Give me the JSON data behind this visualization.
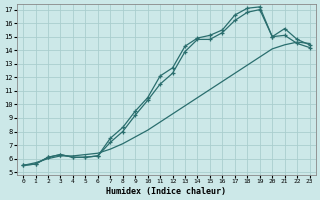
{
  "xlabel": "Humidex (Indice chaleur)",
  "ylabel": "",
  "bg_color": "#cce8e8",
  "grid_color": "#aacece",
  "line_color": "#2a6e6e",
  "x_min": 0,
  "x_max": 23,
  "y_min": 5,
  "y_max": 17,
  "x_ticks": [
    0,
    1,
    2,
    3,
    4,
    5,
    6,
    7,
    8,
    9,
    10,
    11,
    12,
    13,
    14,
    15,
    16,
    17,
    18,
    19,
    20,
    21,
    22,
    23
  ],
  "y_ticks": [
    5,
    6,
    7,
    8,
    9,
    10,
    11,
    12,
    13,
    14,
    15,
    16,
    17
  ],
  "line1_x": [
    0,
    1,
    2,
    3,
    4,
    5,
    6,
    7,
    8,
    9,
    10,
    11,
    12,
    13,
    14,
    15,
    16,
    17,
    18,
    19,
    20,
    21,
    22,
    23
  ],
  "line1_y": [
    5.5,
    5.6,
    6.1,
    6.3,
    6.1,
    6.1,
    6.2,
    7.5,
    8.3,
    9.5,
    10.5,
    12.1,
    12.7,
    14.3,
    14.9,
    15.1,
    15.5,
    16.6,
    17.1,
    17.2,
    15.0,
    15.1,
    14.5,
    14.2
  ],
  "line2_x": [
    0,
    1,
    2,
    3,
    4,
    5,
    6,
    7,
    8,
    9,
    10,
    11,
    12,
    13,
    14,
    15,
    16,
    17,
    18,
    19,
    20,
    21,
    22,
    23
  ],
  "line2_y": [
    5.5,
    5.6,
    6.1,
    6.3,
    6.1,
    6.1,
    6.2,
    7.2,
    8.0,
    9.2,
    10.3,
    11.5,
    12.3,
    13.9,
    14.8,
    14.8,
    15.3,
    16.2,
    16.8,
    17.0,
    15.0,
    15.6,
    14.8,
    14.4
  ],
  "line3_x": [
    0,
    1,
    2,
    3,
    4,
    5,
    6,
    7,
    8,
    9,
    10,
    11,
    12,
    13,
    14,
    15,
    16,
    17,
    18,
    19,
    20,
    21,
    22,
    23
  ],
  "line3_y": [
    5.5,
    5.7,
    6.0,
    6.2,
    6.2,
    6.3,
    6.4,
    6.7,
    7.1,
    7.6,
    8.1,
    8.7,
    9.3,
    9.9,
    10.5,
    11.1,
    11.7,
    12.3,
    12.9,
    13.5,
    14.1,
    14.4,
    14.6,
    14.5
  ]
}
